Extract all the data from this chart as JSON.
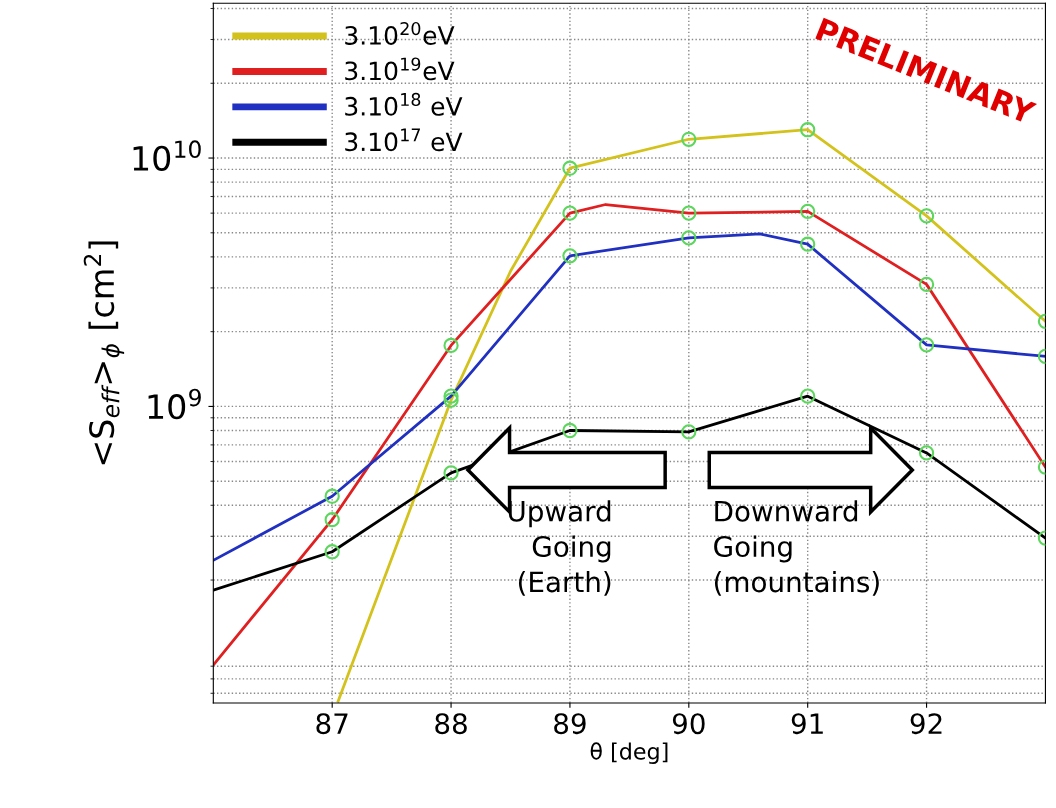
{
  "chart_data": {
    "type": "line",
    "xlabel": "θ [deg]",
    "ylabel": "<S$_{eff}$>$_{ϕ}$ [cm$^{2}$]",
    "log": "y",
    "xlim": [
      86,
      93
    ],
    "xticks": [
      87,
      88,
      89,
      90,
      91,
      92
    ],
    "ylim": [
      64000000.0,
      42000000000.0
    ],
    "yticks": [
      {
        "value": 1000000000.0,
        "label": "10$^{9}$"
      },
      {
        "value": 10000000000.0,
        "label": "10$^{10}$"
      }
    ],
    "grid": true,
    "legend": "top left",
    "x": [
      86,
      87,
      88,
      89,
      90,
      91,
      92,
      93
    ],
    "series": [
      {
        "name": "3.10$^{20}$eV",
        "color": "#d4c21c",
        "x": [
          87.05,
          88,
          88.5,
          89,
          90,
          91,
          92,
          93
        ],
        "values": [
          65000000.0,
          1060000000.0,
          3500000000.0,
          9100000000.0,
          11900000000.0,
          13000000000.0,
          5850000000.0,
          2200000000.0
        ]
      },
      {
        "name": "3.10$^{19}$eV",
        "color": "#e02020",
        "x": [
          86,
          87,
          88,
          89,
          89.3,
          90,
          91,
          92,
          93
        ],
        "values": [
          91000000.0,
          350000000.0,
          1760000000.0,
          6000000000.0,
          6500000000.0,
          6000000000.0,
          6100000000.0,
          3100000000.0,
          570000000.0
        ]
      },
      {
        "name": "3.10$^{18}$ eV",
        "color": "#2030c0",
        "x": [
          86,
          87,
          88,
          89,
          90,
          90.6,
          91,
          92,
          93
        ],
        "values": [
          240000000.0,
          435000000.0,
          1100000000.0,
          4040000000.0,
          4770000000.0,
          4950000000.0,
          4500000000.0,
          1770000000.0,
          1590000000.0
        ]
      },
      {
        "name": "3.10$^{17}$ eV",
        "color": "#000000",
        "values": [
          182000000.0,
          260000000.0,
          540000000.0,
          800000000.0,
          790000000.0,
          1100000000.0,
          650000000.0,
          295000000.0
        ]
      },
      {
        "type": "scatter",
        "color": "#5cd65c",
        "x": [
          88,
          89,
          90,
          91,
          92,
          93,
          87,
          88,
          89,
          90,
          91,
          92,
          93,
          87,
          88,
          89,
          90,
          91,
          92,
          93,
          87,
          88,
          89,
          90,
          91,
          92,
          93
        ],
        "values": [
          1060000000.0,
          9100000000.0,
          11900000000.0,
          13000000000.0,
          5850000000.0,
          2200000000.0,
          350000000.0,
          1760000000.0,
          6000000000.0,
          6000000000.0,
          6100000000.0,
          3100000000.0,
          570000000.0,
          435000000.0,
          1100000000.0,
          4040000000.0,
          4770000000.0,
          4500000000.0,
          1770000000.0,
          1590000000.0,
          260000000.0,
          540000000.0,
          800000000.0,
          790000000.0,
          1100000000.0,
          650000000.0,
          295000000.0
        ]
      }
    ],
    "annotations": [
      "PRELIMINARY",
      "Upward\nGoing\n(Earth)",
      "Downward\nGoing\n(mountains)"
    ]
  }
}
